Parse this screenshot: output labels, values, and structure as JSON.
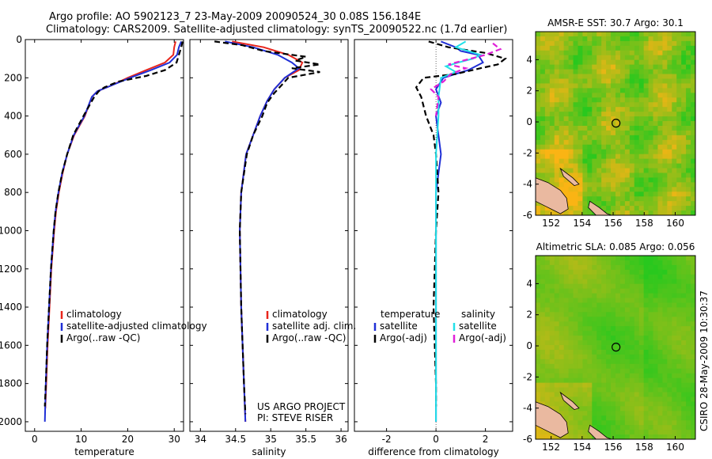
{
  "header": {
    "line1": "Argo profile: AO 5902123_7 23-May-2009 20090524_30 0.08S 156.184E",
    "line2": "Climatology: CARS2009. Satellite-adjusted climatology: synTS_20090522.nc (1.7d earlier)"
  },
  "credits": {
    "project": "US ARGO PROJECT",
    "pi": "PI: STEVE RISER",
    "stamp": "CSIRO 28-May-2009 10:30:37"
  },
  "chart_data": [
    {
      "type": "line",
      "panel": "temperature",
      "xlabel": "temperature",
      "xlim": [
        -2,
        32
      ],
      "ylim": [
        2050,
        0
      ],
      "x_ticks": [
        0,
        10,
        20,
        30
      ],
      "y_ticks": [
        0,
        200,
        400,
        600,
        800,
        1000,
        1200,
        1400,
        1600,
        1800,
        2000
      ],
      "legend": [
        "climatology",
        "satellite-adjusted climatology",
        "Argo(..raw -QC)"
      ],
      "series": [
        {
          "name": "climatology",
          "color": "#e8251b",
          "points": [
            [
              30.3,
              10
            ],
            [
              30,
              40
            ],
            [
              29.8,
              80
            ],
            [
              28,
              120
            ],
            [
              24,
              160
            ],
            [
              20,
              200
            ],
            [
              16.5,
              240
            ],
            [
              13.5,
              270
            ],
            [
              12.3,
              300
            ],
            [
              10.8,
              400
            ],
            [
              8.5,
              500
            ],
            [
              7,
              600
            ],
            [
              6,
              700
            ],
            [
              5.2,
              800
            ],
            [
              4.6,
              900
            ],
            [
              4.2,
              1000
            ],
            [
              3.6,
              1200
            ],
            [
              3.2,
              1400
            ],
            [
              2.8,
              1600
            ],
            [
              2.5,
              1800
            ],
            [
              2.3,
              1930
            ]
          ]
        },
        {
          "name": "satellite-adjusted climatology",
          "color": "#1f2fd6",
          "points": [
            [
              31.5,
              10
            ],
            [
              31,
              40
            ],
            [
              30.6,
              80
            ],
            [
              29,
              120
            ],
            [
              25,
              160
            ],
            [
              20.5,
              200
            ],
            [
              16.5,
              240
            ],
            [
              13.5,
              270
            ],
            [
              12.3,
              300
            ],
            [
              10.7,
              400
            ],
            [
              8.4,
              500
            ],
            [
              7,
              600
            ],
            [
              5.9,
              700
            ],
            [
              5.1,
              800
            ],
            [
              4.5,
              900
            ],
            [
              4.1,
              1000
            ],
            [
              3.5,
              1200
            ],
            [
              3.1,
              1400
            ],
            [
              2.7,
              1600
            ],
            [
              2.4,
              1800
            ],
            [
              2.2,
              2000
            ]
          ]
        },
        {
          "name": "Argo(..raw -QC)",
          "color": "#000000",
          "dash": true,
          "points": [
            [
              31.8,
              10
            ],
            [
              31.5,
              40
            ],
            [
              31,
              80
            ],
            [
              30.5,
              120
            ],
            [
              28,
              160
            ],
            [
              24,
              190
            ],
            [
              18,
              220
            ],
            [
              15,
              250
            ],
            [
              13.8,
              270
            ],
            [
              12.8,
              300
            ],
            [
              10.5,
              400
            ],
            [
              8.3,
              500
            ],
            [
              7,
              600
            ],
            [
              5.9,
              700
            ],
            [
              5.1,
              800
            ],
            [
              4.5,
              900
            ],
            [
              4.1,
              1000
            ],
            [
              3.5,
              1200
            ],
            [
              3.1,
              1400
            ],
            [
              2.7,
              1600
            ],
            [
              2.4,
              1800
            ],
            [
              2.2,
              1920
            ]
          ]
        }
      ]
    },
    {
      "type": "line",
      "panel": "salinity",
      "xlabel": "salinity",
      "xlim": [
        33.85,
        36.1
      ],
      "ylim": [
        2050,
        0
      ],
      "x_ticks": [
        34,
        34.5,
        35,
        35.5,
        36
      ],
      "legend": [
        "climatology",
        "satellite adj. clim.",
        "Argo(..raw -QC)"
      ],
      "series": [
        {
          "name": "climatology",
          "color": "#e8251b",
          "points": [
            [
              34.45,
              10
            ],
            [
              34.9,
              40
            ],
            [
              35.25,
              80
            ],
            [
              35.45,
              120
            ],
            [
              35.4,
              160
            ],
            [
              35.2,
              200
            ],
            [
              35.05,
              260
            ],
            [
              34.95,
              320
            ],
            [
              34.85,
              400
            ],
            [
              34.75,
              500
            ],
            [
              34.65,
              600
            ],
            [
              34.58,
              800
            ],
            [
              34.56,
              1000
            ],
            [
              34.58,
              1400
            ],
            [
              34.62,
              1800
            ],
            [
              34.64,
              2000
            ]
          ]
        },
        {
          "name": "satellite adj. clim.",
          "color": "#1f2fd6",
          "points": [
            [
              34.35,
              10
            ],
            [
              34.75,
              40
            ],
            [
              35.1,
              80
            ],
            [
              35.3,
              120
            ],
            [
              35.4,
              150
            ],
            [
              35.2,
              200
            ],
            [
              35.05,
              260
            ],
            [
              34.95,
              320
            ],
            [
              34.85,
              400
            ],
            [
              34.75,
              500
            ],
            [
              34.65,
              600
            ],
            [
              34.58,
              800
            ],
            [
              34.56,
              1000
            ],
            [
              34.58,
              1400
            ],
            [
              34.62,
              1800
            ],
            [
              34.64,
              2000
            ]
          ]
        },
        {
          "name": "Argo(..raw -QC)",
          "color": "#000000",
          "dash": true,
          "points": [
            [
              34.2,
              10
            ],
            [
              34.6,
              30
            ],
            [
              34.9,
              60
            ],
            [
              35.5,
              90
            ],
            [
              35.35,
              110
            ],
            [
              35.7,
              130
            ],
            [
              35.3,
              150
            ],
            [
              35.7,
              170
            ],
            [
              35.25,
              200
            ],
            [
              35.15,
              240
            ],
            [
              35.05,
              280
            ],
            [
              34.95,
              330
            ],
            [
              34.88,
              400
            ],
            [
              34.75,
              500
            ],
            [
              34.66,
              600
            ],
            [
              34.58,
              800
            ],
            [
              34.56,
              1000
            ],
            [
              34.58,
              1400
            ],
            [
              34.62,
              1800
            ],
            [
              34.64,
              1960
            ]
          ]
        }
      ]
    },
    {
      "type": "line",
      "panel": "difference",
      "xlabel": "difference from climatology",
      "xlim": [
        -3.3,
        3.1
      ],
      "ylim": [
        2050,
        0
      ],
      "x_ticks": [
        -2,
        0,
        2
      ],
      "legend_groups": [
        {
          "title": "temperature",
          "items": [
            "satellite",
            "Argo(-adj)"
          ]
        },
        {
          "title": "salinity",
          "items": [
            "satellite",
            "Argo(-adj)"
          ]
        }
      ],
      "series": [
        {
          "name": "satellite",
          "group": "temperature",
          "color": "#1f2fd6",
          "points": [
            [
              0.2,
              10
            ],
            [
              0.8,
              40
            ],
            [
              1.0,
              60
            ],
            [
              1.7,
              80
            ],
            [
              1.9,
              120
            ],
            [
              1.3,
              160
            ],
            [
              0.3,
              200
            ],
            [
              0,
              260
            ],
            [
              0.2,
              330
            ],
            [
              0,
              400
            ],
            [
              0.2,
              600
            ],
            [
              0,
              800
            ],
            [
              0,
              1000
            ],
            [
              0,
              1400
            ],
            [
              0,
              1800
            ],
            [
              0,
              2000
            ]
          ]
        },
        {
          "name": "Argo(-adj)",
          "group": "temperature",
          "color": "#000000",
          "dash": true,
          "points": [
            [
              -0.3,
              10
            ],
            [
              0.5,
              40
            ],
            [
              2,
              70
            ],
            [
              2.8,
              100
            ],
            [
              2.5,
              130
            ],
            [
              1.8,
              150
            ],
            [
              0.8,
              180
            ],
            [
              -0.5,
              200
            ],
            [
              -0.8,
              250
            ],
            [
              -0.6,
              300
            ],
            [
              -0.4,
              400
            ],
            [
              -0.1,
              500
            ],
            [
              0,
              600
            ],
            [
              0.1,
              800
            ],
            [
              0,
              1000
            ],
            [
              -0.1,
              1400
            ],
            [
              0,
              1800
            ],
            [
              0,
              1920
            ]
          ]
        },
        {
          "name": "satellite",
          "group": "salinity",
          "color": "#22e0e8",
          "points": [
            [
              1.2,
              10
            ],
            [
              0.8,
              40
            ],
            [
              1.8,
              80
            ],
            [
              1.5,
              100
            ],
            [
              0.9,
              120
            ],
            [
              0.4,
              140
            ],
            [
              0.8,
              170
            ],
            [
              0.2,
              200
            ],
            [
              0.1,
              300
            ],
            [
              0.1,
              400
            ],
            [
              0,
              600
            ],
            [
              0,
              1000
            ],
            [
              0,
              1400
            ],
            [
              0,
              1800
            ],
            [
              0,
              2000
            ]
          ]
        },
        {
          "name": "Argo(-adj)",
          "group": "salinity",
          "color": "#e020d8",
          "dash": true,
          "points": [
            [
              2.3,
              20
            ],
            [
              2.6,
              50
            ],
            [
              2.0,
              80
            ],
            [
              1.4,
              100
            ],
            [
              0.5,
              130
            ],
            [
              1.2,
              150
            ],
            [
              0.6,
              180
            ],
            [
              0.3,
              220
            ],
            [
              -0.2,
              260
            ],
            [
              0.1,
              300
            ],
            [
              0,
              400
            ]
          ]
        }
      ]
    },
    {
      "type": "heatmap",
      "panel": "sst",
      "title": "AMSR-E SST: 30.7 Argo: 30.1",
      "xlim": [
        151,
        161.3
      ],
      "ylim": [
        -6,
        5.8
      ],
      "x_ticks": [
        152,
        154,
        156,
        158,
        160
      ],
      "y_ticks": [
        -6,
        -4,
        -2,
        0,
        2,
        4
      ],
      "marker": {
        "lon": 156.184,
        "lat": -0.08
      }
    },
    {
      "type": "heatmap",
      "panel": "sla",
      "title": "Altimetric SLA: 0.085 Argo: 0.056",
      "xlim": [
        151,
        161.3
      ],
      "ylim": [
        -6,
        5.8
      ],
      "x_ticks": [
        152,
        154,
        156,
        158,
        160
      ],
      "y_ticks": [
        -6,
        -4,
        -2,
        0,
        2,
        4
      ],
      "marker": {
        "lon": 156.184,
        "lat": -0.08
      }
    }
  ]
}
